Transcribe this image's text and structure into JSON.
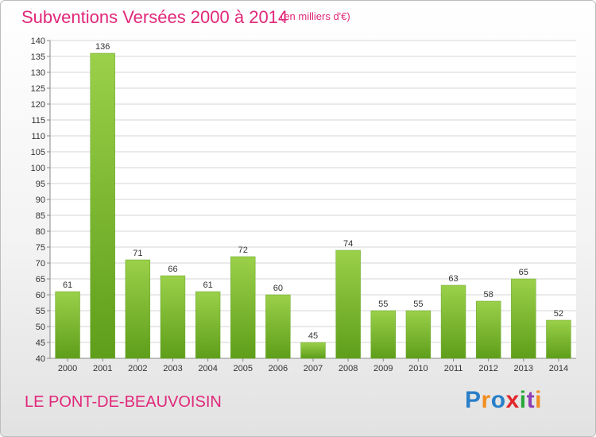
{
  "header": {
    "title": "Subventions Versées 2000 à 2014",
    "subtitle": "(en milliers d'€)"
  },
  "footer": {
    "place": "LE PONT-DE-BEAUVOISIN",
    "logo_text": "Proxiti"
  },
  "colors": {
    "accent": "#e0287a",
    "bar_top": "#9bd04a",
    "bar_bottom": "#5e9e1a"
  },
  "chart_data": {
    "type": "bar",
    "title": "Subventions Versées 2000 à 2014",
    "subtitle": "(en milliers d'€)",
    "categories": [
      "2000",
      "2001",
      "2002",
      "2003",
      "2004",
      "2005",
      "2006",
      "2007",
      "2008",
      "2009",
      "2010",
      "2011",
      "2012",
      "2013",
      "2014"
    ],
    "values": [
      61,
      136,
      71,
      66,
      61,
      72,
      60,
      45,
      74,
      55,
      55,
      63,
      58,
      65,
      52
    ],
    "ylim": [
      40,
      140
    ],
    "ytick_step": 5,
    "grid": true,
    "xlabel": "",
    "ylabel": ""
  }
}
